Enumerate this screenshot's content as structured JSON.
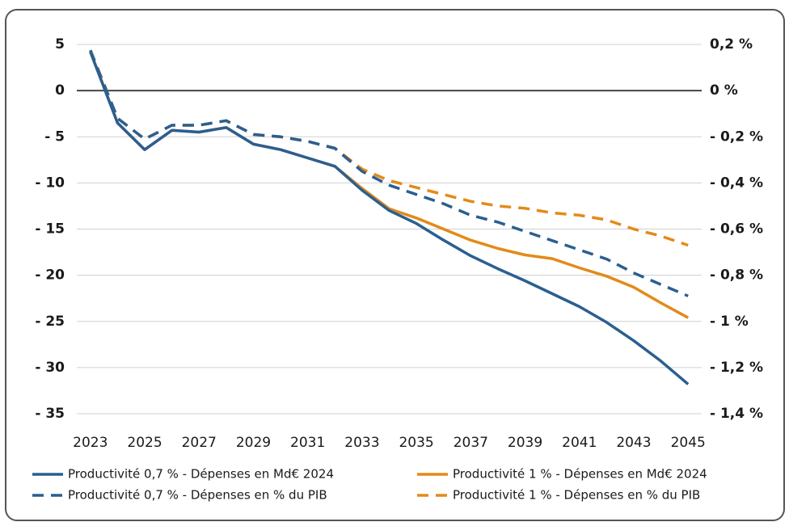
{
  "chart_data": {
    "type": "line",
    "x": [
      2023,
      2024,
      2025,
      2026,
      2027,
      2028,
      2029,
      2030,
      2031,
      2032,
      2033,
      2034,
      2035,
      2036,
      2037,
      2038,
      2039,
      2040,
      2041,
      2042,
      2043,
      2044,
      2045
    ],
    "xlim": [
      2022.5,
      2045.5
    ],
    "xticks": [
      2023,
      2025,
      2027,
      2029,
      2031,
      2033,
      2035,
      2037,
      2039,
      2041,
      2043,
      2045
    ],
    "ylim": [
      -35,
      5
    ],
    "yticks": [
      5,
      0,
      {
        "value": -5,
        "label": "- 5"
      },
      {
        "value": -10,
        "label": "- 10"
      },
      {
        "value": -15,
        "label": "- 15"
      },
      {
        "value": -20,
        "label": "- 20"
      },
      {
        "value": -25,
        "label": "- 25"
      },
      {
        "value": -30,
        "label": "- 30"
      },
      {
        "value": -35,
        "label": "- 35"
      }
    ],
    "y2lim": [
      -1.4,
      0.2
    ],
    "y2ticks": [
      {
        "value": 0.2,
        "label": "0,2 %"
      },
      {
        "value": 0,
        "label": "0 %"
      },
      {
        "value": -0.2,
        "label": "- 0,2 %"
      },
      {
        "value": -0.4,
        "label": "- 0,4 %"
      },
      {
        "value": -0.6,
        "label": "- 0,6 %"
      },
      {
        "value": -0.8,
        "label": "- 0,8 %"
      },
      {
        "value": -1,
        "label": "- 1 %"
      },
      {
        "value": -1.2,
        "label": "- 1,2 %"
      },
      {
        "value": -1.4,
        "label": "- 1,4 %"
      }
    ],
    "grid": true,
    "legend": "bottom",
    "series": [
      {
        "name": "Productivité 0,7 % - Dépenses en Md€ 2024",
        "color": "#2a5f91",
        "line_style": "solid",
        "values": [
          4.2,
          -3.5,
          -6.4,
          -4.3,
          -4.5,
          -4.0,
          -5.8,
          -6.4,
          -7.3,
          -8.2,
          -10.8,
          -13.0,
          -14.4,
          -16.2,
          -17.9,
          -19.3,
          -20.6,
          -22.0,
          -23.4,
          -25.1,
          -27.1,
          -29.3,
          -31.8
        ]
      },
      {
        "name": "Productivité 1 % - Dépenses en Md€ 2024",
        "color": "#e38a1a",
        "line_style": "solid",
        "values": [
          4.2,
          -3.5,
          -6.4,
          -4.3,
          -4.5,
          -4.0,
          -5.8,
          -6.4,
          -7.3,
          -8.2,
          -10.6,
          -12.8,
          -13.8,
          -15.0,
          -16.2,
          -17.1,
          -17.8,
          -18.2,
          -19.2,
          -20.1,
          -21.3,
          -23.0,
          -24.6
        ]
      },
      {
        "name": "Productivité 0,7 % - Dépenses en % du PIB",
        "color": "#2a5f91",
        "line_style": "dashed",
        "axis": "y2",
        "values": [
          0.175,
          -0.12,
          -0.21,
          -0.15,
          -0.15,
          -0.13,
          -0.19,
          -0.2,
          -0.22,
          -0.25,
          -0.35,
          -0.41,
          -0.45,
          -0.49,
          -0.54,
          -0.57,
          -0.61,
          -0.65,
          -0.69,
          -0.73,
          -0.79,
          -0.84,
          -0.89
        ]
      },
      {
        "name": "Productivité 1 % - Dépenses en % du PIB",
        "color": "#e38a1a",
        "line_style": "dashed",
        "axis": "y2",
        "values": [
          0.175,
          -0.12,
          -0.21,
          -0.15,
          -0.15,
          -0.13,
          -0.19,
          -0.2,
          -0.22,
          -0.25,
          -0.34,
          -0.39,
          -0.42,
          -0.45,
          -0.48,
          -0.5,
          -0.51,
          -0.53,
          -0.54,
          -0.56,
          -0.6,
          -0.63,
          -0.67
        ]
      }
    ]
  }
}
